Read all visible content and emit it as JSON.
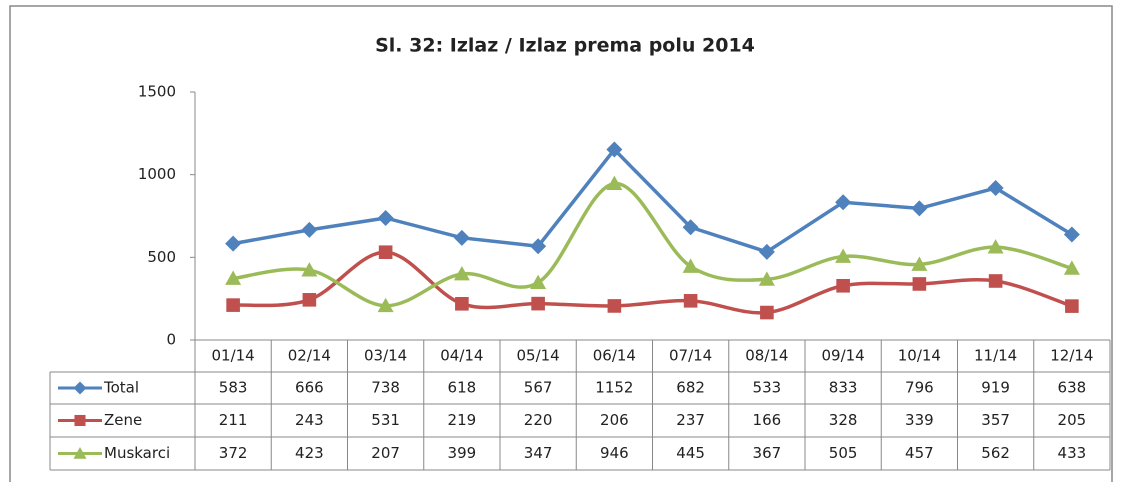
{
  "chart_data": {
    "type": "line",
    "title": "Sl. 32:  Izlaz / Izlaz prema polu 2014",
    "categories": [
      "01/14",
      "02/14",
      "03/14",
      "04/14",
      "05/14",
      "06/14",
      "07/14",
      "08/14",
      "09/14",
      "10/14",
      "11/14",
      "12/14"
    ],
    "series": [
      {
        "name": "Total",
        "color": "#4f81bd",
        "marker": "diamond",
        "smooth": false,
        "values": [
          583,
          666,
          738,
          618,
          567,
          1152,
          682,
          533,
          833,
          796,
          919,
          638
        ]
      },
      {
        "name": "Zene",
        "color": "#c0504d",
        "marker": "square",
        "smooth": true,
        "values": [
          211,
          243,
          531,
          219,
          220,
          206,
          237,
          166,
          328,
          339,
          357,
          205
        ]
      },
      {
        "name": "Muskarci",
        "color": "#9bbb59",
        "marker": "triangle",
        "smooth": true,
        "values": [
          372,
          423,
          207,
          399,
          347,
          946,
          445,
          367,
          505,
          457,
          562,
          433
        ]
      }
    ],
    "ylim": [
      0,
      1500
    ],
    "yticks": [
      0,
      500,
      1000,
      1500
    ],
    "grid": false,
    "data_table": true
  }
}
